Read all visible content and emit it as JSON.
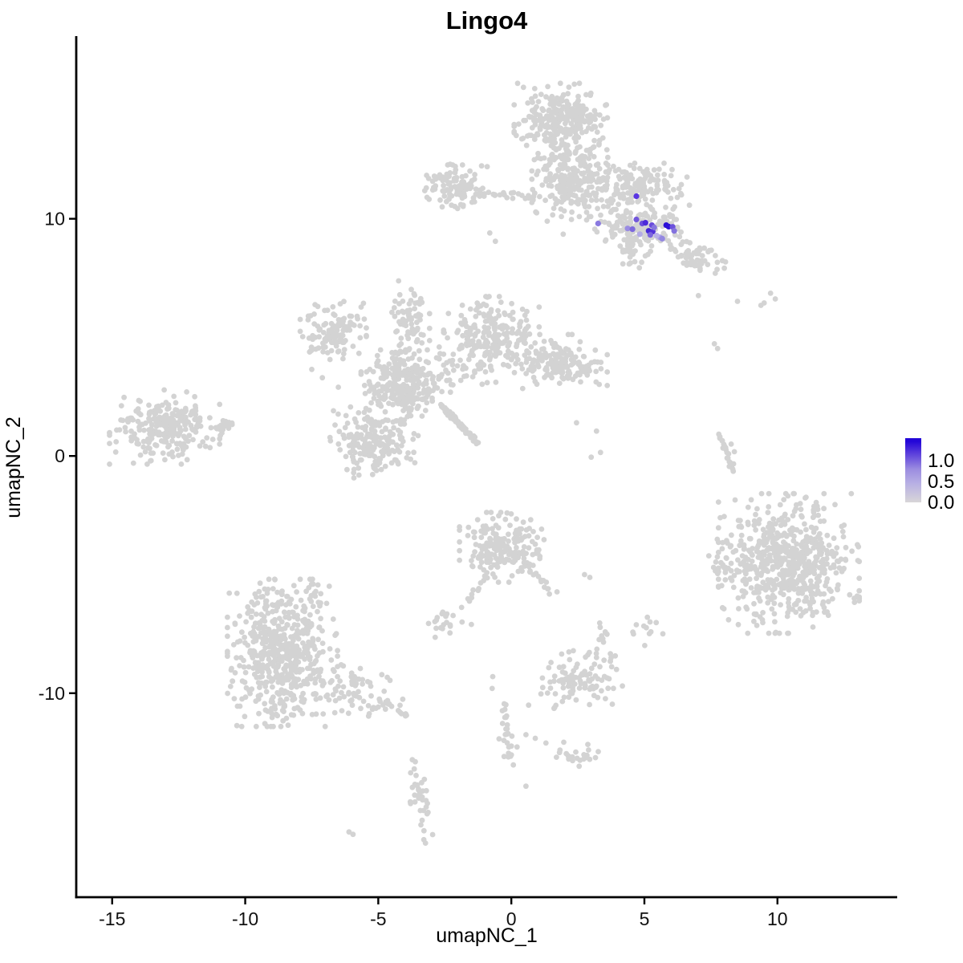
{
  "title": "Lingo4",
  "axes": {
    "x_title": "umapNC_1",
    "y_title": "umapNC_2"
  },
  "legend": {
    "labels": [
      "1.0",
      "0.5",
      "0.0"
    ],
    "gradient_low": "#d8d6d8",
    "gradient_mid": "#9b8ce0",
    "gradient_high": "#2306d8"
  },
  "chart_data": {
    "type": "scatter",
    "title": "Lingo4",
    "xlabel": "umapNC_1",
    "ylabel": "umapNC_2",
    "xlim": [
      -16.35,
      14.5
    ],
    "ylim": [
      -18.6,
      17.7
    ],
    "xticks": [
      -15,
      -10,
      -5,
      0,
      5,
      10
    ],
    "yticks": [
      -10,
      0,
      10
    ],
    "grid": false,
    "legend_position": "right",
    "point_color_low": "#d3d3d3",
    "point_color_high": "#2306d8",
    "point_radius": 3.4,
    "axis_color": "#000000",
    "clusters": [
      {
        "name": "top-core",
        "cx": 1.9,
        "cy": 14.1,
        "sx": 0.78,
        "sy": 0.7,
        "n": 300
      },
      {
        "name": "top-column",
        "cx": 2.2,
        "cy": 11.7,
        "sx": 0.62,
        "sy": 0.7,
        "n": 230
      },
      {
        "name": "top-right-wing",
        "cx": 4.67,
        "cy": 11.42,
        "sx": 0.84,
        "sy": 0.4,
        "n": 150
      },
      {
        "name": "top-left-arm",
        "cx": -2.08,
        "cy": 11.35,
        "sx": 0.51,
        "sy": 0.4,
        "n": 110
      },
      {
        "name": "lingo4-region-grey-base",
        "cx": 4.76,
        "cy": 9.7,
        "sx": 0.84,
        "sy": 0.47,
        "n": 160
      },
      {
        "name": "below-streak-blob",
        "cx": 4.61,
        "cy": 8.55,
        "sx": 0.3,
        "sy": 0.3,
        "n": 22
      },
      {
        "name": "top-tail-downright",
        "cx": 6.85,
        "cy": 8.38,
        "sx": 0.54,
        "sy": 0.4,
        "rot": -25,
        "n": 55
      },
      {
        "name": "far-left-cluster",
        "cx": -13.03,
        "cy": 1.22,
        "sx": 0.9,
        "sy": 0.68,
        "n": 260
      },
      {
        "name": "far-left-tail",
        "cx": -10.77,
        "cy": 1.22,
        "sx": 0.24,
        "sy": 0.2,
        "n": 20
      },
      {
        "name": "central-nw-blob",
        "cx": -6.69,
        "cy": 5.27,
        "sx": 0.54,
        "sy": 0.54,
        "n": 120
      },
      {
        "name": "central-hub",
        "cx": -4.13,
        "cy": 2.91,
        "sx": 0.66,
        "sy": 0.68,
        "n": 260
      },
      {
        "name": "central-vertical-arm",
        "cx": -3.83,
        "cy": 5.68,
        "sx": 0.33,
        "sy": 0.74,
        "n": 80
      },
      {
        "name": "central-upper-right",
        "cx": -0.75,
        "cy": 4.86,
        "sx": 0.78,
        "sy": 0.81,
        "n": 240
      },
      {
        "name": "central-right-ext",
        "cx": 1.81,
        "cy": 3.95,
        "sx": 0.78,
        "sy": 0.51,
        "n": 160
      },
      {
        "name": "central-downleft-arm",
        "cx": -5.16,
        "cy": 0.64,
        "sx": 0.72,
        "sy": 0.68,
        "n": 200
      },
      {
        "name": "central-connector",
        "cx": -2.6,
        "cy": 3.6,
        "sx": 0.6,
        "sy": 0.6,
        "n": 30
      },
      {
        "name": "bottomleft-main",
        "cx": -8.6,
        "cy": -8.3,
        "sx": 0.9,
        "sy": 1.35,
        "n": 550
      },
      {
        "name": "bottomleft-top-fringe",
        "cx": -8.3,
        "cy": -5.8,
        "sx": 1.0,
        "sy": 0.35,
        "n": 25
      },
      {
        "name": "bottomleft-tail",
        "cx": -5.9,
        "cy": -9.9,
        "sx": 0.8,
        "sy": 0.42,
        "rot": -18,
        "n": 70
      },
      {
        "name": "center-cluster",
        "cx": -0.36,
        "cy": -3.85,
        "sx": 0.69,
        "sy": 0.64,
        "n": 200
      },
      {
        "name": "small-blob-left",
        "cx": -2.5,
        "cy": -7.0,
        "sx": 0.32,
        "sy": 0.28,
        "n": 18
      },
      {
        "name": "small-blob-right1",
        "cx": 3.45,
        "cy": -7.5,
        "sx": 0.25,
        "sy": 0.28,
        "n": 10
      },
      {
        "name": "small-blob-right2",
        "cx": 5.05,
        "cy": -7.3,
        "sx": 0.28,
        "sy": 0.3,
        "n": 12
      },
      {
        "name": "south-cluster-left-lobe",
        "cx": 1.8,
        "cy": -9.75,
        "sx": 0.5,
        "sy": 0.4,
        "n": 40
      },
      {
        "name": "south-cluster-right-lobe",
        "cx": 2.9,
        "cy": -9.2,
        "sx": 0.65,
        "sy": 0.55,
        "n": 65
      },
      {
        "name": "bottom-blob",
        "cx": 2.3,
        "cy": -12.6,
        "sx": 0.42,
        "sy": 0.3,
        "n": 22
      },
      {
        "name": "bottom-chain-blob",
        "cx": -0.2,
        "cy": -12.35,
        "sx": 0.3,
        "sy": 0.3,
        "n": 12
      },
      {
        "name": "bottom-comma",
        "cx": -3.45,
        "cy": -14.4,
        "sx": 0.16,
        "sy": 0.85,
        "rot": 8,
        "n": 38
      },
      {
        "name": "right-main-cluster",
        "cx": 10.43,
        "cy": -4.53,
        "sx": 1.15,
        "sy": 1.28,
        "n": 620
      },
      {
        "name": "right-appendage",
        "cx": 7.96,
        "cy": -4.66,
        "sx": 0.27,
        "sy": 0.5,
        "n": 25
      }
    ],
    "chains": [
      {
        "name": "top-left-arm-link",
        "x1": -1.12,
        "y1": 11.0,
        "x2": 0.93,
        "y2": 10.98,
        "n": 22,
        "jitter": 0.13
      },
      {
        "name": "streak-diagonal",
        "x1": -2.62,
        "y1": 2.13,
        "x2": -1.28,
        "y2": 0.57,
        "n": 60,
        "jitter": 0.07
      },
      {
        "name": "arm-hub-link",
        "x1": -4.4,
        "y1": 4.5,
        "x2": -4.15,
        "y2": 3.6,
        "n": 10,
        "jitter": 0.15
      },
      {
        "name": "bottomleft-tail-chain",
        "x1": -5.0,
        "y1": -10.4,
        "x2": -3.85,
        "y2": -10.85,
        "n": 15,
        "jitter": 0.18
      },
      {
        "name": "center-tail-downright",
        "x1": 0.55,
        "y1": -4.7,
        "x2": 1.6,
        "y2": -5.75,
        "n": 16,
        "jitter": 0.15
      },
      {
        "name": "center-chain-downleft",
        "x1": -0.85,
        "y1": -4.9,
        "x2": -1.75,
        "y2": -6.3,
        "n": 13,
        "jitter": 0.12
      },
      {
        "name": "bottom-vertical-chain",
        "x1": -0.28,
        "y1": -10.45,
        "x2": -0.18,
        "y2": -11.95,
        "n": 15,
        "jitter": 0.1
      },
      {
        "name": "right-comma-dash",
        "x1": 7.78,
        "y1": 0.95,
        "x2": 8.33,
        "y2": -0.62,
        "n": 20,
        "jitter": 0.07
      }
    ],
    "singles": [
      [
        -2.6,
        10.5
      ],
      [
        -1.9,
        10.6
      ],
      [
        -2.3,
        12.3
      ],
      [
        -0.81,
        9.4
      ],
      [
        -0.6,
        9.05
      ],
      [
        2.26,
        9.97
      ],
      [
        1.95,
        9.35
      ],
      [
        0.95,
        10.25
      ],
      [
        1.35,
        9.9
      ],
      [
        -14.85,
        0.6
      ],
      [
        -14.6,
        1.5
      ],
      [
        -14.2,
        -0.3
      ],
      [
        -11.9,
        2.5
      ],
      [
        -12.2,
        2.7
      ],
      [
        -7.5,
        3.65
      ],
      [
        -7.1,
        3.3
      ],
      [
        -6.5,
        2.9
      ],
      [
        2.45,
        1.4
      ],
      [
        3.2,
        1.05
      ],
      [
        3.35,
        0.15
      ],
      [
        3.0,
        -0.05
      ],
      [
        2.75,
        -5.0
      ],
      [
        2.95,
        -5.12
      ],
      [
        -1.85,
        -7.0
      ],
      [
        -1.5,
        -7.1
      ],
      [
        -0.72,
        -9.8
      ],
      [
        -0.7,
        -9.3
      ],
      [
        3.75,
        -8.5
      ],
      [
        3.95,
        -9.0
      ],
      [
        0.55,
        -11.75
      ],
      [
        0.9,
        -11.9
      ],
      [
        1.3,
        -12.1
      ],
      [
        -6.1,
        -15.85
      ],
      [
        -5.95,
        -15.95
      ],
      [
        0.55,
        -13.92
      ],
      [
        7.03,
        6.76
      ],
      [
        8.5,
        6.52
      ],
      [
        9.38,
        6.35
      ],
      [
        9.74,
        6.86
      ],
      [
        9.92,
        6.62
      ],
      [
        9.5,
        6.45
      ],
      [
        7.63,
        4.73
      ],
      [
        7.75,
        4.53
      ],
      [
        8.26,
        0.5
      ],
      [
        8.38,
        0.18
      ],
      [
        8.35,
        -0.33
      ],
      [
        7.85,
        -2.6
      ]
    ],
    "expressing_points": [
      [
        4.7,
        10.95,
        "#5a36e2"
      ],
      [
        3.26,
        9.8,
        "#8a7ae0"
      ],
      [
        4.37,
        9.59,
        "#9a8ce2"
      ],
      [
        4.55,
        9.56,
        "#7d68de"
      ],
      [
        4.7,
        9.97,
        "#7257dc"
      ],
      [
        4.92,
        9.8,
        "#6c50dc"
      ],
      [
        5.04,
        9.83,
        "#4c2bd9"
      ],
      [
        5.28,
        9.73,
        "#6a4cdb"
      ],
      [
        5.16,
        9.49,
        "#4326d8"
      ],
      [
        5.31,
        9.46,
        "#5232da"
      ],
      [
        5.22,
        9.32,
        "#7c66de"
      ],
      [
        5.37,
        9.63,
        "#8676df"
      ],
      [
        5.58,
        9.22,
        "#a99fe5"
      ],
      [
        5.67,
        9.16,
        "#9488e1"
      ],
      [
        5.82,
        9.73,
        "#2b0fd7"
      ],
      [
        5.91,
        9.67,
        "#2d10d8"
      ],
      [
        6.06,
        9.66,
        "#6b51dc"
      ],
      [
        6.12,
        9.49,
        "#8472de"
      ],
      [
        4.83,
        9.35,
        "#b3abe6"
      ],
      [
        5.46,
        9.29,
        "#bab2e7"
      ]
    ]
  }
}
